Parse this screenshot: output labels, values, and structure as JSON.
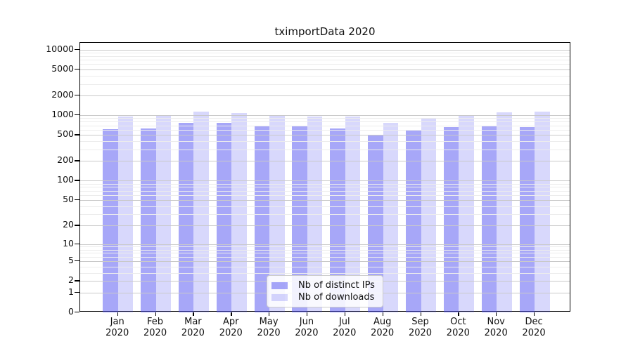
{
  "title": "tximportData 2020",
  "chart_data": {
    "type": "bar",
    "title": "tximportData 2020",
    "scale": "log1p",
    "grid": "major+minor, horizontal only, drawn over bars",
    "legend_position": "inside-bottom-center",
    "categories": [
      "Jan",
      "Feb",
      "Mar",
      "Apr",
      "May",
      "Jun",
      "Jul",
      "Aug",
      "Sep",
      "Oct",
      "Nov",
      "Dec"
    ],
    "x_tick_label_line2": "2020",
    "series": [
      {
        "name": "Nb of distinct IPs",
        "color": "rgba(76,76,240,0.49)",
        "values": [
          618,
          633,
          770,
          765,
          698,
          680,
          633,
          495,
          583,
          658,
          680,
          658
        ]
      },
      {
        "name": "Nb of downloads",
        "color": "rgba(76,76,240,0.22)",
        "values": [
          945,
          970,
          1130,
          1075,
          985,
          960,
          960,
          770,
          890,
          975,
          1110,
          1140
        ]
      }
    ],
    "yticks": [
      0,
      1,
      2,
      5,
      10,
      20,
      50,
      100,
      200,
      500,
      1000,
      2000,
      5000,
      10000
    ],
    "ylim": [
      0,
      13500
    ],
    "xlabel": "",
    "ylabel": ""
  },
  "colors": {
    "background": "#ffffff",
    "axis": "#000000",
    "grid_major": "#c9c9c9",
    "grid_minor": "#ececec",
    "text": "#111111",
    "legend_border": "#cccccc",
    "legend_background": "rgba(255,255,255,0.85)"
  }
}
